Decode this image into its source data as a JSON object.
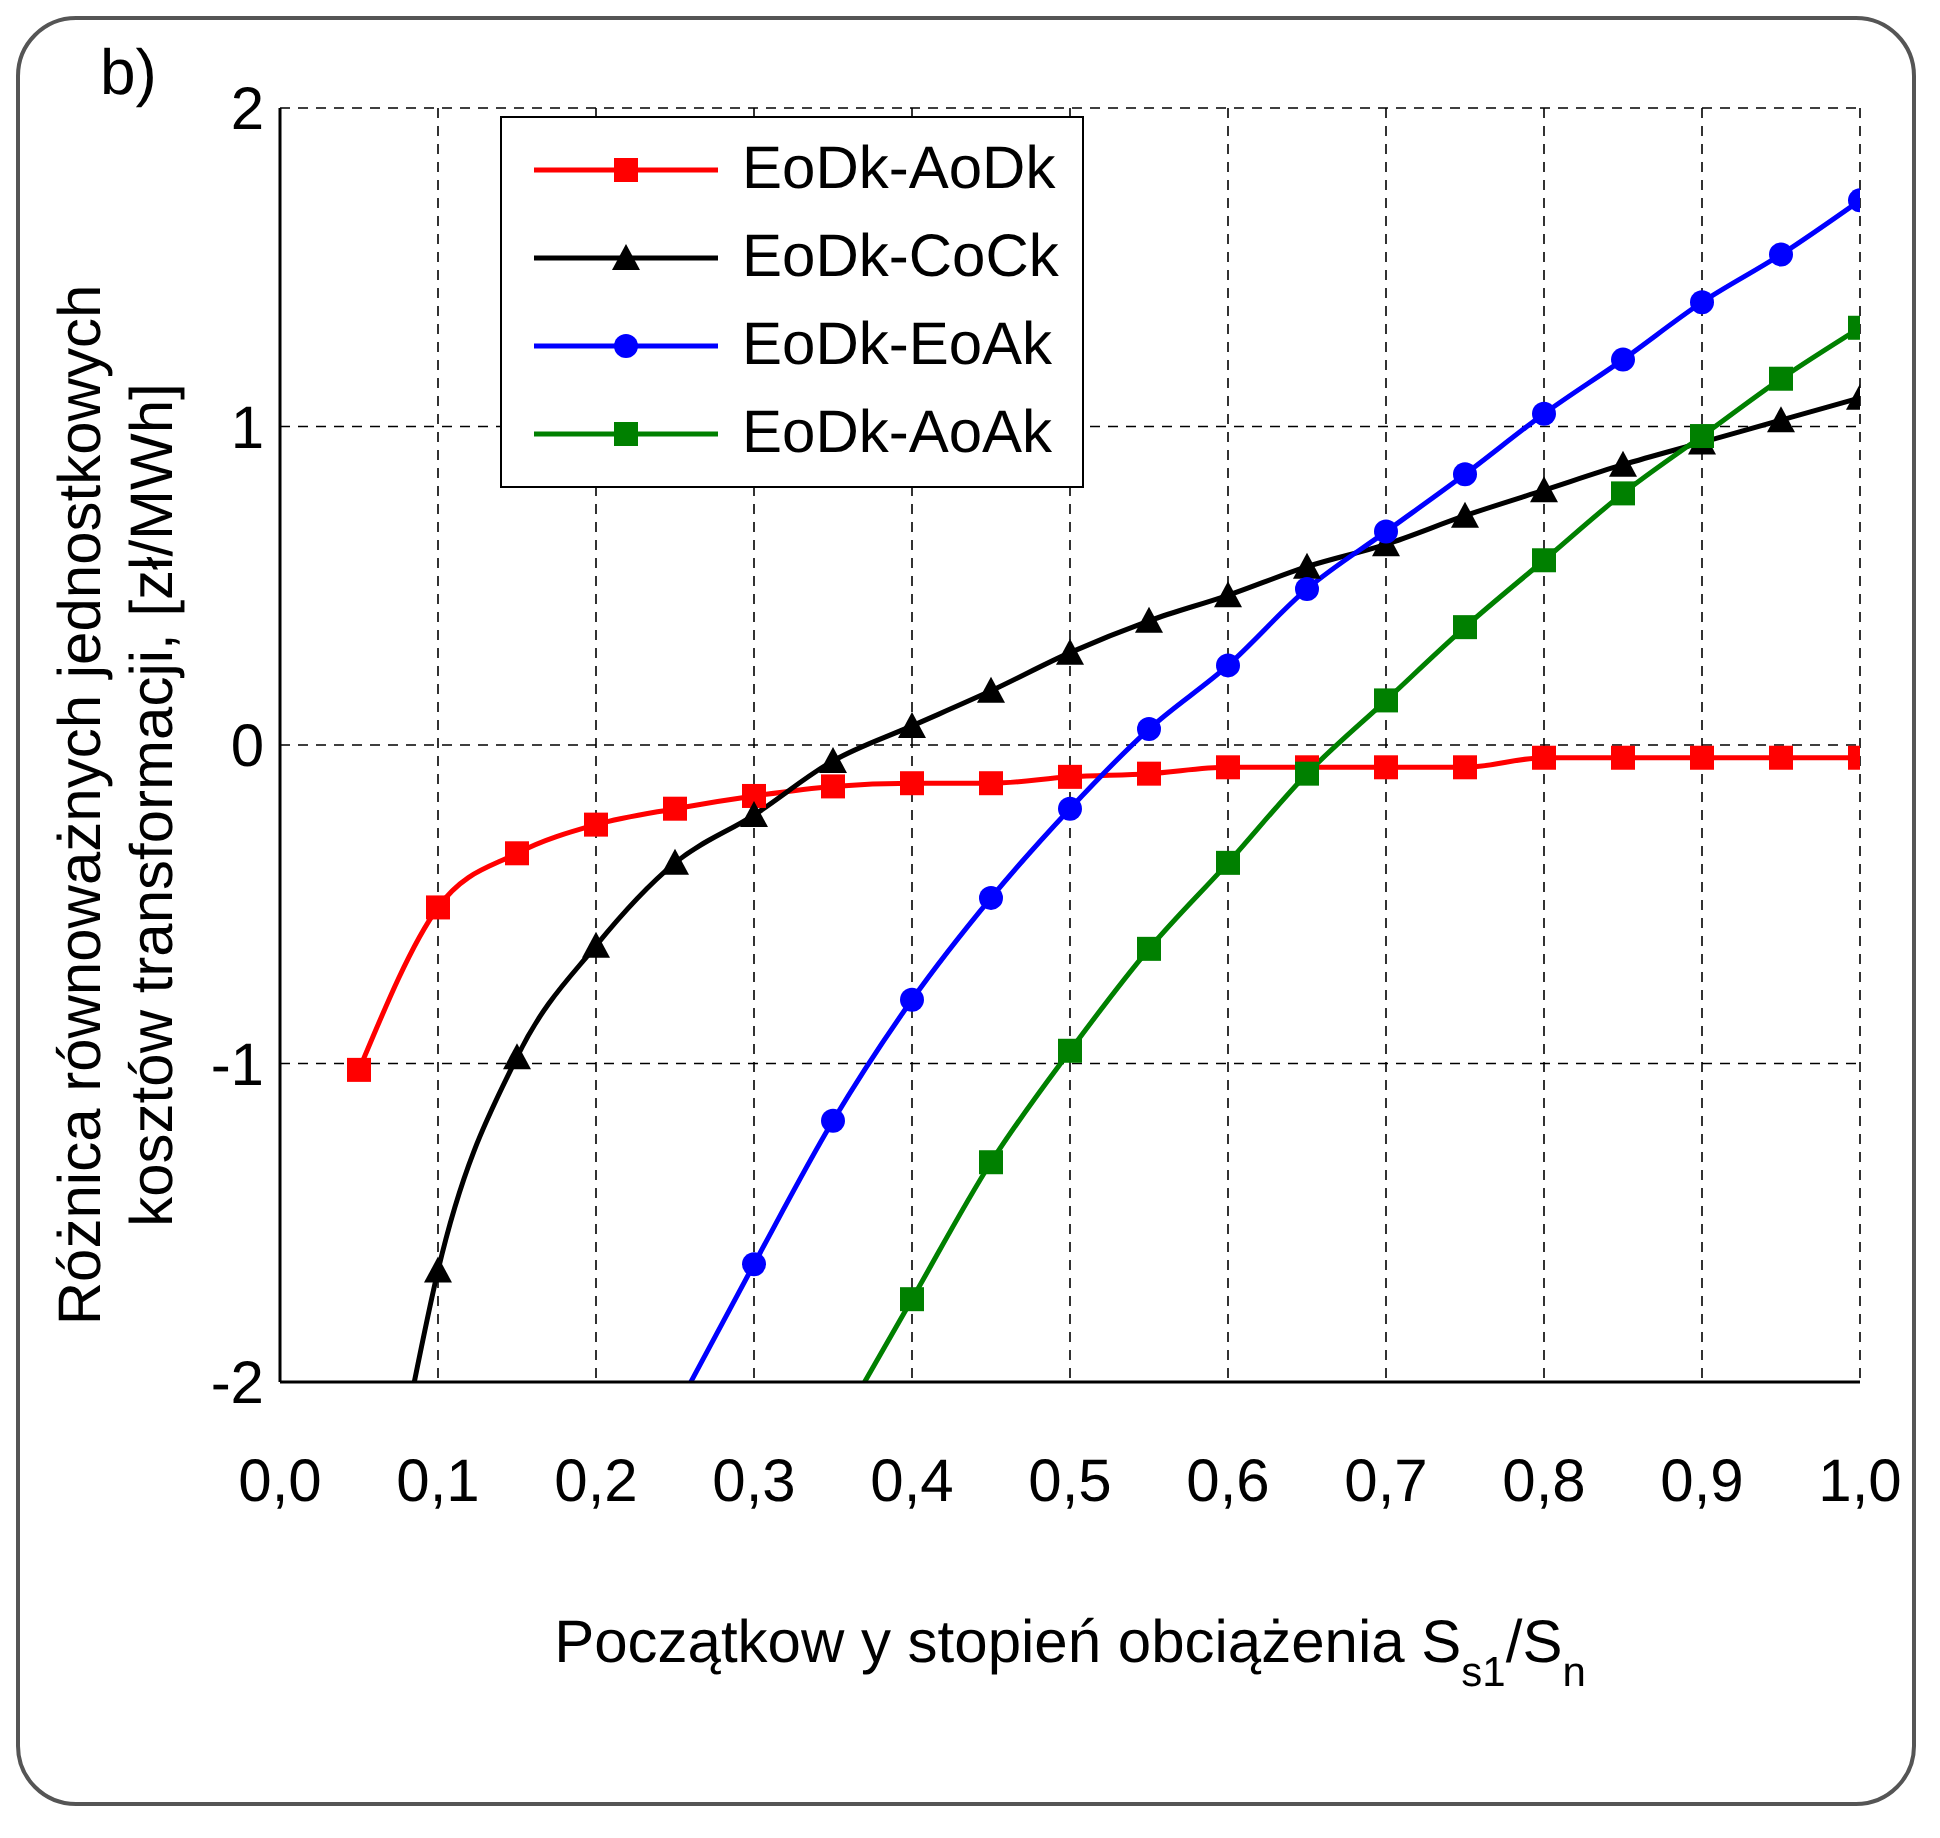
{
  "chart_data": {
    "type": "line",
    "xlabel": "Początkow y stopień obciążenia S$_{s1}$/S$_{n}$",
    "ylabel": "Różnica równoważnych jednostkowych\nkosztów transformacji, [zł/MWh]",
    "annotations": [
      "b)"
    ],
    "xlim": [
      0,
      1
    ],
    "xticks": [
      {
        "value": 0,
        "label": "0,0"
      },
      {
        "value": 0.1,
        "label": "0,1"
      },
      {
        "value": 0.2,
        "label": "0,2"
      },
      {
        "value": 0.3,
        "label": "0,3"
      },
      {
        "value": 0.4,
        "label": "0,4"
      },
      {
        "value": 0.5,
        "label": "0,5"
      },
      {
        "value": 0.6,
        "label": "0,6"
      },
      {
        "value": 0.7,
        "label": "0,7"
      },
      {
        "value": 0.8,
        "label": "0,8"
      },
      {
        "value": 0.9,
        "label": "0,9"
      },
      {
        "value": 1,
        "label": "1,0"
      }
    ],
    "ylim": [
      -2,
      2
    ],
    "yticks": [
      -2,
      -1,
      0,
      1,
      2
    ],
    "grid": true,
    "legend": "top left",
    "line_style": "solid",
    "series": [
      {
        "name": "EoDk-AoDk",
        "color": "#ff0000",
        "marker": "square",
        "x": [
          0.05,
          0.1,
          0.15,
          0.2,
          0.25,
          0.3,
          0.35,
          0.4,
          0.45,
          0.5,
          0.55,
          0.6,
          0.65,
          0.7,
          0.75,
          0.8,
          0.85,
          0.9,
          0.95,
          1.0
        ],
        "values": [
          -1.02,
          -0.51,
          -0.34,
          -0.25,
          -0.2,
          -0.16,
          -0.13,
          -0.12,
          -0.12,
          -0.1,
          -0.09,
          -0.07,
          -0.07,
          -0.07,
          -0.07,
          -0.04,
          -0.04,
          -0.04,
          -0.04,
          -0.04
        ]
      },
      {
        "name": "EoDk-CoCk",
        "color": "#000000",
        "marker": "triangle",
        "x": [
          0.085,
          0.1,
          0.15,
          0.2,
          0.25,
          0.3,
          0.35,
          0.4,
          0.45,
          0.5,
          0.55,
          0.6,
          0.65,
          0.7,
          0.75,
          0.8,
          0.85,
          0.9,
          0.95,
          1.0
        ],
        "values": [
          -2,
          -1.65,
          -0.98,
          -0.63,
          -0.37,
          -0.22,
          -0.05,
          0.06,
          0.17,
          0.29,
          0.39,
          0.47,
          0.56,
          0.63,
          0.72,
          0.8,
          0.88,
          0.95,
          1.02,
          1.09
        ]
      },
      {
        "name": "EoDk-EoAk",
        "color": "#0000ff",
        "marker": "circle",
        "x": [
          0.26,
          0.3,
          0.35,
          0.4,
          0.45,
          0.5,
          0.55,
          0.6,
          0.65,
          0.7,
          0.75,
          0.8,
          0.85,
          0.9,
          0.95,
          1.0
        ],
        "values": [
          -2,
          -1.63,
          -1.18,
          -0.8,
          -0.48,
          -0.2,
          0.05,
          0.25,
          0.49,
          0.67,
          0.85,
          1.04,
          1.21,
          1.39,
          1.54,
          1.71
        ]
      },
      {
        "name": "EoDk-AoAk",
        "color": "#008000",
        "marker": "square",
        "x": [
          0.37,
          0.4,
          0.45,
          0.5,
          0.55,
          0.6,
          0.65,
          0.7,
          0.75,
          0.8,
          0.85,
          0.9,
          0.95,
          1.0
        ],
        "values": [
          -2,
          -1.74,
          -1.31,
          -0.96,
          -0.64,
          -0.37,
          -0.09,
          0.14,
          0.37,
          0.58,
          0.79,
          0.97,
          1.15,
          1.31
        ]
      }
    ]
  }
}
